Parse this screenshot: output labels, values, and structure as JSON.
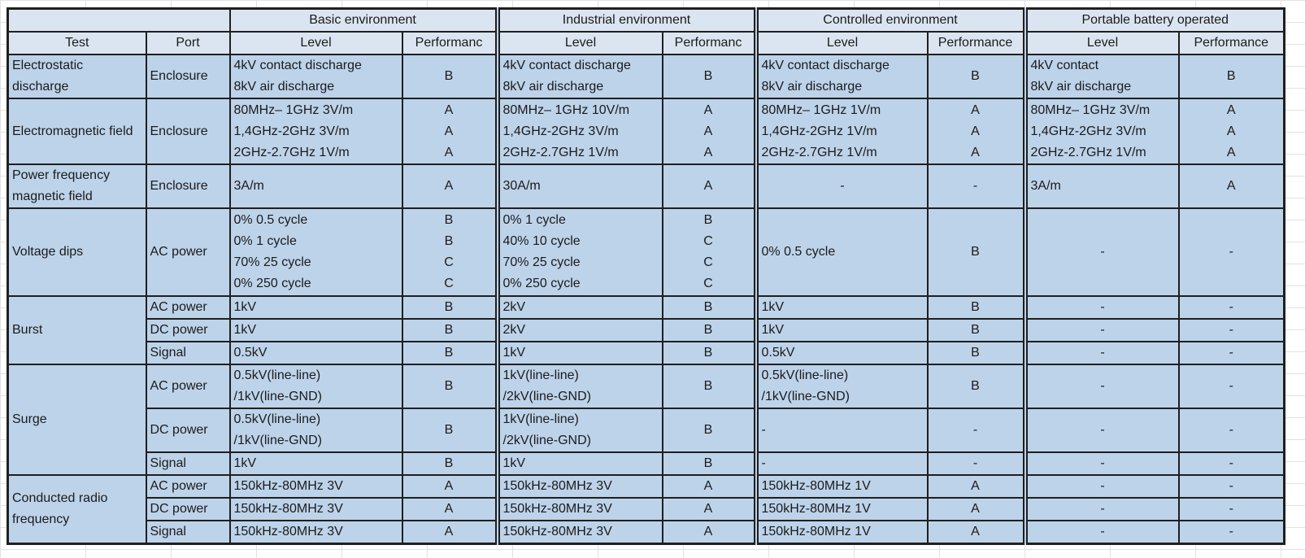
{
  "colors": {
    "header_bg": "#dbe5f1",
    "body_bg": "#bdd3ea",
    "border": "#1f1f1f",
    "gridline": "#e2e2e2",
    "text": "#1b1b1b"
  },
  "table": {
    "corner_label": "",
    "test_header": "Test",
    "port_header": "Port",
    "groups": [
      {
        "label": "Basic environment",
        "level_header": "Level",
        "performance_header": "Performanc"
      },
      {
        "label": "Industrial environment",
        "level_header": "Level",
        "performance_header": "Performanc"
      },
      {
        "label": "Controlled environment",
        "level_header": "Level",
        "performance_header": "Performance"
      },
      {
        "label": "Portable battery operated",
        "level_header": "Level",
        "performance_header": "Performance"
      }
    ],
    "rows": [
      {
        "test": "Electrostatic discharge",
        "ports": [
          {
            "port": "Enclosure",
            "rh": 2,
            "cells": [
              {
                "level": [
                  "4kV contact discharge",
                  "8kV air discharge"
                ],
                "perf": [
                  "B"
                ]
              },
              {
                "level": [
                  "4kV contact discharge",
                  "8kV air discharge"
                ],
                "perf": [
                  "B"
                ]
              },
              {
                "level": [
                  "4kV contact discharge",
                  "8kV air discharge"
                ],
                "perf": [
                  "B"
                ]
              },
              {
                "level": [
                  "4kV contact",
                  "8kV air discharge"
                ],
                "perf": [
                  "B"
                ]
              }
            ]
          }
        ]
      },
      {
        "test": "Electromagnetic field",
        "ports": [
          {
            "port": "Enclosure",
            "rh": 3,
            "cells": [
              {
                "level": [
                  "80MHz– 1GHz 3V/m",
                  "1,4GHz-2GHz 3V/m",
                  "2GHz-2.7GHz 1V/m"
                ],
                "perf": [
                  "A",
                  "A",
                  "A"
                ]
              },
              {
                "level": [
                  "80MHz– 1GHz 10V/m",
                  "1,4GHz-2GHz 3V/m",
                  "2GHz-2.7GHz 1V/m"
                ],
                "perf": [
                  "A",
                  "A",
                  "A"
                ]
              },
              {
                "level": [
                  "80MHz– 1GHz 1V/m",
                  "1,4GHz-2GHz 1V/m",
                  "2GHz-2.7GHz 1V/m"
                ],
                "perf": [
                  "A",
                  "A",
                  "A"
                ]
              },
              {
                "level": [
                  "80MHz– 1GHz 3V/m",
                  "1,4GHz-2GHz 3V/m",
                  "2GHz-2.7GHz 1V/m"
                ],
                "perf": [
                  "A",
                  "A",
                  "A"
                ]
              }
            ]
          }
        ]
      },
      {
        "test": "Power frequency magnetic field",
        "ports": [
          {
            "port": "Enclosure",
            "rh": 2,
            "cells": [
              {
                "level": [
                  "3A/m"
                ],
                "perf": [
                  "A"
                ]
              },
              {
                "level": [
                  "30A/m"
                ],
                "perf": [
                  "A"
                ]
              },
              {
                "level": [
                  "-"
                ],
                "align": "center",
                "perf": [
                  "-"
                ]
              },
              {
                "level": [
                  "3A/m"
                ],
                "perf": [
                  "A"
                ]
              }
            ]
          }
        ]
      },
      {
        "test": "Voltage dips",
        "ports": [
          {
            "port": "AC power",
            "rh": 4,
            "cells": [
              {
                "level": [
                  "0% 0.5 cycle",
                  "0% 1 cycle",
                  "70% 25 cycle",
                  "0% 250 cycle"
                ],
                "perf": [
                  "B",
                  "B",
                  "C",
                  "C"
                ]
              },
              {
                "level": [
                  "0% 1 cycle",
                  "40% 10 cycle",
                  "70% 25 cycle",
                  "0% 250 cycle"
                ],
                "perf": [
                  "B",
                  "C",
                  "C",
                  "C"
                ]
              },
              {
                "level": [
                  "0% 0.5 cycle"
                ],
                "perf": [
                  "B"
                ]
              },
              {
                "level": [
                  "-"
                ],
                "align": "center",
                "perf": [
                  "-"
                ]
              }
            ]
          }
        ]
      },
      {
        "test": "Burst",
        "ports": [
          {
            "port": "AC power",
            "rh": 1,
            "cells": [
              {
                "level": [
                  "1kV"
                ],
                "perf": [
                  "B"
                ]
              },
              {
                "level": [
                  "2kV"
                ],
                "perf": [
                  "B"
                ]
              },
              {
                "level": [
                  "1kV"
                ],
                "perf": [
                  "B"
                ]
              },
              {
                "level": [
                  "-"
                ],
                "align": "center",
                "perf": [
                  "-"
                ]
              }
            ]
          },
          {
            "port": "DC power",
            "rh": 1,
            "cells": [
              {
                "level": [
                  "1kV"
                ],
                "perf": [
                  "B"
                ]
              },
              {
                "level": [
                  "2kV"
                ],
                "perf": [
                  "B"
                ]
              },
              {
                "level": [
                  "1kV"
                ],
                "perf": [
                  "B"
                ]
              },
              {
                "level": [
                  "-"
                ],
                "align": "center",
                "perf": [
                  "-"
                ]
              }
            ]
          },
          {
            "port": "Signal",
            "rh": 1,
            "cells": [
              {
                "level": [
                  "0.5kV"
                ],
                "perf": [
                  "B"
                ]
              },
              {
                "level": [
                  "1kV"
                ],
                "perf": [
                  "B"
                ]
              },
              {
                "level": [
                  "0.5kV"
                ],
                "perf": [
                  "B"
                ]
              },
              {
                "level": [
                  "-"
                ],
                "align": "center",
                "perf": [
                  "-"
                ]
              }
            ]
          }
        ]
      },
      {
        "test": "Surge",
        "ports": [
          {
            "port": "AC power",
            "rh": 2,
            "cells": [
              {
                "level": [
                  "0.5kV(line-line)",
                  "/1kV(line-GND)"
                ],
                "perf": [
                  "B"
                ]
              },
              {
                "level": [
                  "1kV(line-line)",
                  "/2kV(line-GND)"
                ],
                "perf": [
                  "B"
                ]
              },
              {
                "level": [
                  "0.5kV(line-line)",
                  "/1kV(line-GND)"
                ],
                "perf": [
                  "B"
                ]
              },
              {
                "level": [
                  "-"
                ],
                "align": "center",
                "perf": [
                  "-"
                ]
              }
            ]
          },
          {
            "port": "DC power",
            "rh": 2,
            "cells": [
              {
                "level": [
                  "0.5kV(line-line)",
                  "/1kV(line-GND)"
                ],
                "perf": [
                  "B"
                ]
              },
              {
                "level": [
                  "1kV(line-line)",
                  "/2kV(line-GND)"
                ],
                "perf": [
                  "B"
                ]
              },
              {
                "level": [
                  "-"
                ],
                "perf": [
                  "-"
                ]
              },
              {
                "level": [
                  "-"
                ],
                "align": "center",
                "perf": [
                  "-"
                ]
              }
            ]
          },
          {
            "port": "Signal",
            "rh": 1,
            "cells": [
              {
                "level": [
                  "1kV"
                ],
                "perf": [
                  "B"
                ]
              },
              {
                "level": [
                  "1kV"
                ],
                "perf": [
                  "B"
                ]
              },
              {
                "level": [
                  "-"
                ],
                "perf": [
                  "-"
                ]
              },
              {
                "level": [
                  "-"
                ],
                "align": "center",
                "perf": [
                  "-"
                ]
              }
            ]
          }
        ]
      },
      {
        "test": "Conducted radio frequency",
        "ports": [
          {
            "port": "AC power",
            "rh": 1,
            "cells": [
              {
                "level": [
                  "150kHz-80MHz 3V"
                ],
                "perf": [
                  "A"
                ]
              },
              {
                "level": [
                  "150kHz-80MHz 3V"
                ],
                "perf": [
                  "A"
                ]
              },
              {
                "level": [
                  "150kHz-80MHz 1V"
                ],
                "perf": [
                  "A"
                ]
              },
              {
                "level": [
                  "-"
                ],
                "align": "center",
                "perf": [
                  "-"
                ]
              }
            ]
          },
          {
            "port": "DC power",
            "rh": 1,
            "cells": [
              {
                "level": [
                  "150kHz-80MHz 3V"
                ],
                "perf": [
                  "A"
                ]
              },
              {
                "level": [
                  "150kHz-80MHz 3V"
                ],
                "perf": [
                  "A"
                ]
              },
              {
                "level": [
                  "150kHz-80MHz 1V"
                ],
                "perf": [
                  "A"
                ]
              },
              {
                "level": [
                  "-"
                ],
                "align": "center",
                "perf": [
                  "-"
                ]
              }
            ]
          },
          {
            "port": "Signal",
            "rh": 1,
            "cells": [
              {
                "level": [
                  "150kHz-80MHz 3V"
                ],
                "perf": [
                  "A"
                ]
              },
              {
                "level": [
                  "150kHz-80MHz 3V"
                ],
                "perf": [
                  "A"
                ]
              },
              {
                "level": [
                  "150kHz-80MHz 1V"
                ],
                "perf": [
                  "A"
                ]
              },
              {
                "level": [
                  "-"
                ],
                "align": "center",
                "perf": [
                  "-"
                ]
              }
            ]
          }
        ]
      }
    ]
  }
}
